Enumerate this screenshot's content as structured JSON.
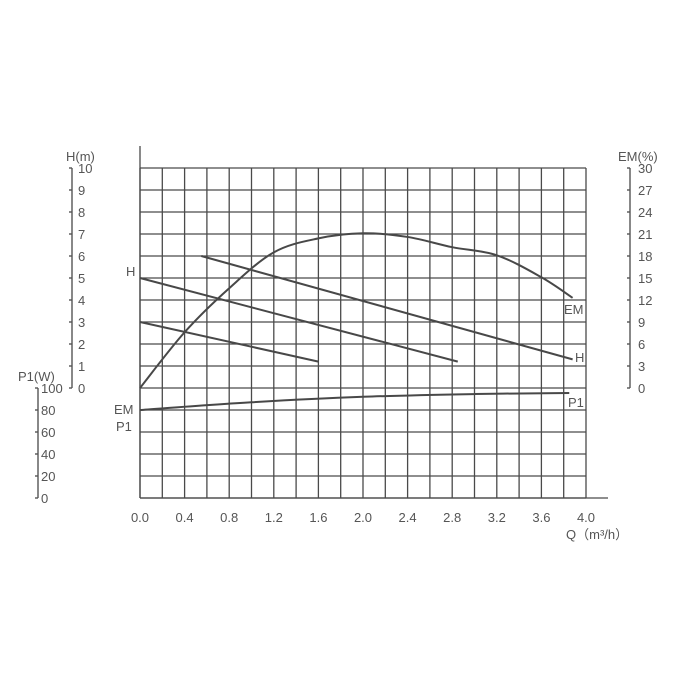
{
  "chart_data": {
    "type": "line",
    "xlabel": "Q（m³/h）",
    "x_ticks": [
      "0.0",
      "0.4",
      "0.8",
      "1.2",
      "1.6",
      "2.0",
      "2.4",
      "2.8",
      "3.2",
      "3.6",
      "4.0"
    ],
    "xlim": [
      0,
      4.0
    ],
    "grid": true,
    "axes": {
      "H": {
        "label": "H(m)",
        "ylim": [
          0,
          10
        ],
        "ticks": [
          "0",
          "1",
          "2",
          "3",
          "4",
          "5",
          "6",
          "7",
          "8",
          "9",
          "10"
        ],
        "side": "left"
      },
      "P1": {
        "label": "P1(W)",
        "ylim": [
          0,
          100
        ],
        "ticks": [
          "0",
          "20",
          "40",
          "60",
          "80",
          "100"
        ],
        "side": "left-lower"
      },
      "EM": {
        "label": "EM(%)",
        "ylim": [
          0,
          30
        ],
        "ticks": [
          "0",
          "3",
          "6",
          "9",
          "12",
          "15",
          "18",
          "21",
          "24",
          "27",
          "30"
        ],
        "side": "right"
      }
    },
    "series": [
      {
        "name": "H",
        "axis": "H",
        "label_position": "left",
        "x": [
          0.0,
          1.6
        ],
        "y": [
          3.0,
          1.2
        ]
      },
      {
        "name": "H",
        "axis": "H",
        "label_position": "left",
        "x": [
          0.0,
          2.85
        ],
        "y": [
          5.0,
          1.2
        ]
      },
      {
        "name": "H",
        "axis": "H",
        "label_position": "right",
        "x": [
          0.55,
          3.88
        ],
        "y": [
          6.0,
          1.3
        ]
      },
      {
        "name": "EM",
        "axis": "EM",
        "label_position": "both",
        "x": [
          0.0,
          0.4,
          0.8,
          1.2,
          1.6,
          2.0,
          2.4,
          2.8,
          3.2,
          3.6,
          3.88
        ],
        "y": [
          0,
          7.6,
          13.6,
          18.5,
          20.4,
          21.1,
          20.6,
          19.2,
          18.1,
          15.1,
          12.3
        ]
      },
      {
        "name": "P1",
        "axis": "P1",
        "label_position": "both",
        "x": [
          0.0,
          1.0,
          2.0,
          3.0,
          3.85
        ],
        "y": [
          80,
          87,
          92,
          94.5,
          95.5
        ]
      }
    ],
    "colors": {
      "line": "#484848",
      "grid": "#4a4a4a",
      "text": "#555555"
    }
  }
}
